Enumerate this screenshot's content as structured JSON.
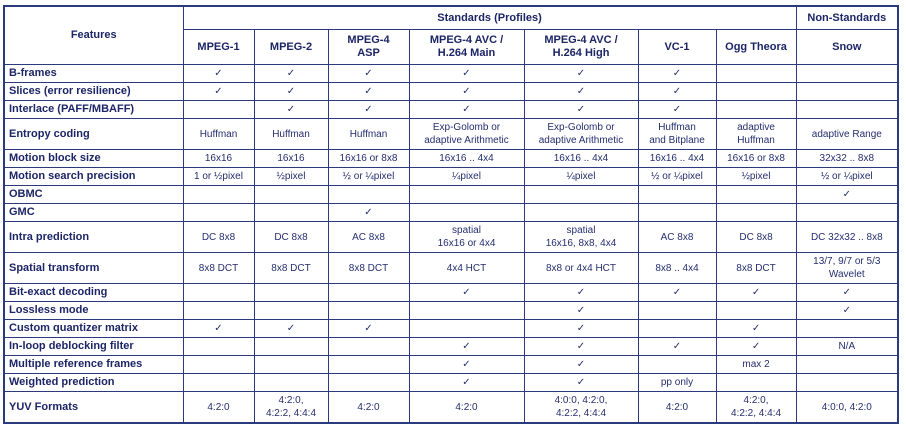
{
  "colors": {
    "border": "#2b3a7d",
    "text": "#252e6e",
    "header_text": "#1c2566",
    "background": "#ffffff"
  },
  "table": {
    "corner_header": "Features",
    "group_headers": [
      {
        "label": "Standards (Profiles)",
        "span": 7
      },
      {
        "label": "Non-Standards",
        "span": 1
      }
    ],
    "column_headers": [
      "MPEG-1",
      "MPEG-2",
      "MPEG-4\nASP",
      "MPEG-4 AVC /\nH.264 Main",
      "MPEG-4 AVC /\nH.264 High",
      "VC-1",
      "Ogg Theora",
      "Snow"
    ],
    "check_glyph": "✓",
    "rows": [
      {
        "feature": "B-frames",
        "values": [
          "✓",
          "✓",
          "✓",
          "✓",
          "✓",
          "✓",
          "",
          ""
        ]
      },
      {
        "feature": "Slices (error resilience)",
        "values": [
          "✓",
          "✓",
          "✓",
          "✓",
          "✓",
          "✓",
          "",
          ""
        ]
      },
      {
        "feature": "Interlace (PAFF/MBAFF)",
        "values": [
          "",
          "✓",
          "✓",
          "✓",
          "✓",
          "✓",
          "",
          ""
        ]
      },
      {
        "feature": "Entropy coding",
        "values": [
          "Huffman",
          "Huffman",
          "Huffman",
          "Exp-Golomb or\nadaptive Arithmetic",
          "Exp-Golomb or\nadaptive Arithmetic",
          "Huffman\nand Bitplane",
          "adaptive\nHuffman",
          "adaptive Range"
        ]
      },
      {
        "feature": "Motion block size",
        "values": [
          "16x16",
          "16x16",
          "16x16 or 8x8",
          "16x16 .. 4x4",
          "16x16 .. 4x4",
          "16x16 .. 4x4",
          "16x16 or 8x8",
          "32x32 .. 8x8"
        ]
      },
      {
        "feature": "Motion search precision",
        "values": [
          "1 or ½pixel",
          "½pixel",
          "½ or ¼pixel",
          "¼pixel",
          "¼pixel",
          "½ or ¼pixel",
          "½pixel",
          "½ or ¼pixel"
        ]
      },
      {
        "feature": "OBMC",
        "values": [
          "",
          "",
          "",
          "",
          "",
          "",
          "",
          "✓"
        ]
      },
      {
        "feature": "GMC",
        "values": [
          "",
          "",
          "✓",
          "",
          "",
          "",
          "",
          ""
        ]
      },
      {
        "feature": "Intra prediction",
        "values": [
          "DC 8x8",
          "DC 8x8",
          "AC 8x8",
          "spatial\n16x16 or 4x4",
          "spatial\n16x16, 8x8, 4x4",
          "AC 8x8",
          "DC 8x8",
          "DC 32x32 .. 8x8"
        ]
      },
      {
        "feature": "Spatial transform",
        "values": [
          "8x8 DCT",
          "8x8 DCT",
          "8x8 DCT",
          "4x4 HCT",
          "8x8 or 4x4 HCT",
          "8x8 .. 4x4",
          "8x8 DCT",
          "13/7, 9/7 or 5/3\nWavelet"
        ]
      },
      {
        "feature": "Bit-exact decoding",
        "values": [
          "",
          "",
          "",
          "✓",
          "✓",
          "✓",
          "✓",
          "✓"
        ]
      },
      {
        "feature": "Lossless mode",
        "values": [
          "",
          "",
          "",
          "",
          "✓",
          "",
          "",
          "✓"
        ]
      },
      {
        "feature": "Custom quantizer matrix",
        "values": [
          "✓",
          "✓",
          "✓",
          "",
          "✓",
          "",
          "✓",
          ""
        ]
      },
      {
        "feature": "In-loop deblocking filter",
        "values": [
          "",
          "",
          "",
          "✓",
          "✓",
          "✓",
          "✓",
          "N/A"
        ]
      },
      {
        "feature": "Multiple reference frames",
        "values": [
          "",
          "",
          "",
          "✓",
          "✓",
          "",
          "max 2",
          ""
        ]
      },
      {
        "feature": "Weighted prediction",
        "values": [
          "",
          "",
          "",
          "✓",
          "✓",
          "pp only",
          "",
          ""
        ]
      },
      {
        "feature": "YUV Formats",
        "values": [
          "4:2:0",
          "4:2:0,\n4:2:2, 4:4:4",
          "4:2:0",
          "4:2:0",
          "4:0:0, 4:2:0,\n4:2:2, 4:4:4",
          "4:2:0",
          "4:2:0,\n4:2:2, 4:4:4",
          "4:0:0, 4:2:0"
        ]
      }
    ]
  }
}
